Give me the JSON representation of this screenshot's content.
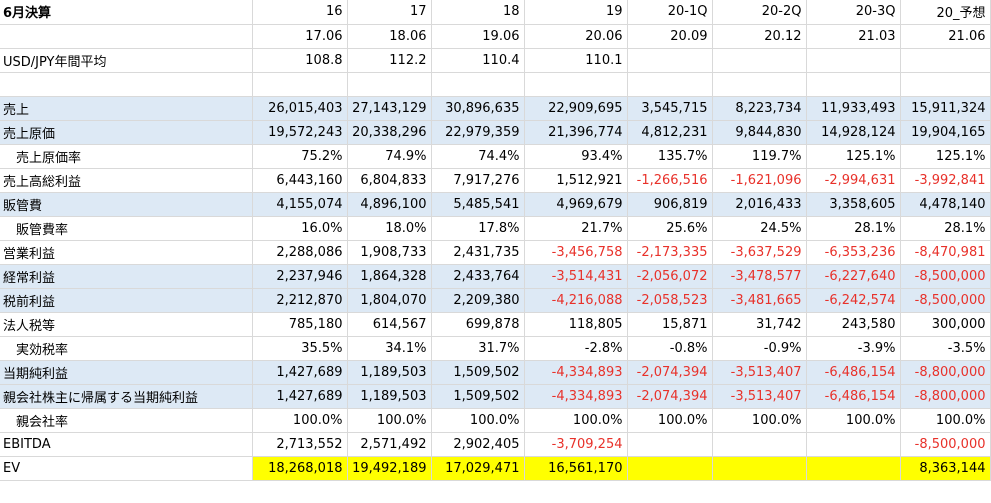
{
  "header": {
    "title": "6月決算",
    "periods": [
      "16",
      "17",
      "18",
      "19",
      "20-1Q",
      "20-2Q",
      "20-3Q",
      "20_予想"
    ],
    "dates": [
      "17.06",
      "18.06",
      "19.06",
      "20.06",
      "20.09",
      "20.12",
      "21.03",
      "21.06"
    ]
  },
  "rows": [
    {
      "label": "USD/JPY年間平均",
      "values": [
        "108.8",
        "112.2",
        "110.4",
        "110.1",
        "",
        "",
        "",
        ""
      ]
    },
    {
      "label": "",
      "values": [
        "",
        "",
        "",
        "",
        "",
        "",
        "",
        ""
      ]
    },
    {
      "label": "売上",
      "values": [
        "26,015,403",
        "27,143,129",
        "30,896,635",
        "22,909,695",
        "3,545,715",
        "8,223,734",
        "11,933,493",
        "15,911,324"
      ]
    },
    {
      "label": "売上原価",
      "values": [
        "19,572,243",
        "20,338,296",
        "22,979,359",
        "21,396,774",
        "4,812,231",
        "9,844,830",
        "14,928,124",
        "19,904,165"
      ]
    },
    {
      "label": "売上原価率",
      "values": [
        "75.2%",
        "74.9%",
        "74.4%",
        "93.4%",
        "135.7%",
        "119.7%",
        "125.1%",
        "125.1%"
      ]
    },
    {
      "label": "売上高総利益",
      "values": [
        "6,443,160",
        "6,804,833",
        "7,917,276",
        "1,512,921",
        "-1,266,516",
        "-1,621,096",
        "-2,994,631",
        "-3,992,841"
      ]
    },
    {
      "label": "販管費",
      "values": [
        "4,155,074",
        "4,896,100",
        "5,485,541",
        "4,969,679",
        "906,819",
        "2,016,433",
        "3,358,605",
        "4,478,140"
      ]
    },
    {
      "label": "販管費率",
      "values": [
        "16.0%",
        "18.0%",
        "17.8%",
        "21.7%",
        "25.6%",
        "24.5%",
        "28.1%",
        "28.1%"
      ]
    },
    {
      "label": "営業利益",
      "values": [
        "2,288,086",
        "1,908,733",
        "2,431,735",
        "-3,456,758",
        "-2,173,335",
        "-3,637,529",
        "-6,353,236",
        "-8,470,981"
      ]
    },
    {
      "label": "経常利益",
      "values": [
        "2,237,946",
        "1,864,328",
        "2,433,764",
        "-3,514,431",
        "-2,056,072",
        "-3,478,577",
        "-6,227,640",
        "-8,500,000"
      ]
    },
    {
      "label": "税前利益",
      "values": [
        "2,212,870",
        "1,804,070",
        "2,209,380",
        "-4,216,088",
        "-2,058,523",
        "-3,481,665",
        "-6,242,574",
        "-8,500,000"
      ]
    },
    {
      "label": "法人税等",
      "values": [
        "785,180",
        "614,567",
        "699,878",
        "118,805",
        "15,871",
        "31,742",
        "243,580",
        "300,000"
      ]
    },
    {
      "label": "実効税率",
      "values": [
        "35.5%",
        "34.1%",
        "31.7%",
        "-2.8%",
        "-0.8%",
        "-0.9%",
        "-3.9%",
        "-3.5%"
      ]
    },
    {
      "label": "当期純利益",
      "values": [
        "1,427,689",
        "1,189,503",
        "1,509,502",
        "-4,334,893",
        "-2,074,394",
        "-3,513,407",
        "-6,486,154",
        "-8,800,000"
      ]
    },
    {
      "label": "親会社株主に帰属する当期純利益",
      "values": [
        "1,427,689",
        "1,189,503",
        "1,509,502",
        "-4,334,893",
        "-2,074,394",
        "-3,513,407",
        "-6,486,154",
        "-8,800,000"
      ]
    },
    {
      "label": "親会社率",
      "values": [
        "100.0%",
        "100.0%",
        "100.0%",
        "100.0%",
        "100.0%",
        "100.0%",
        "100.0%",
        "100.0%"
      ]
    },
    {
      "label": "EBITDA",
      "values": [
        "2,713,552",
        "2,571,492",
        "2,902,405",
        "-3,709,254",
        "",
        "",
        "",
        "-8,500,000"
      ]
    },
    {
      "label": "EV",
      "values": [
        "18,268,018",
        "19,492,189",
        "17,029,471",
        "16,561,170",
        "",
        "",
        "",
        "8,363,144"
      ]
    }
  ],
  "colors": {
    "negative": "#e8312a",
    "band": "#dde9f5",
    "highlight": "#ffff00"
  }
}
